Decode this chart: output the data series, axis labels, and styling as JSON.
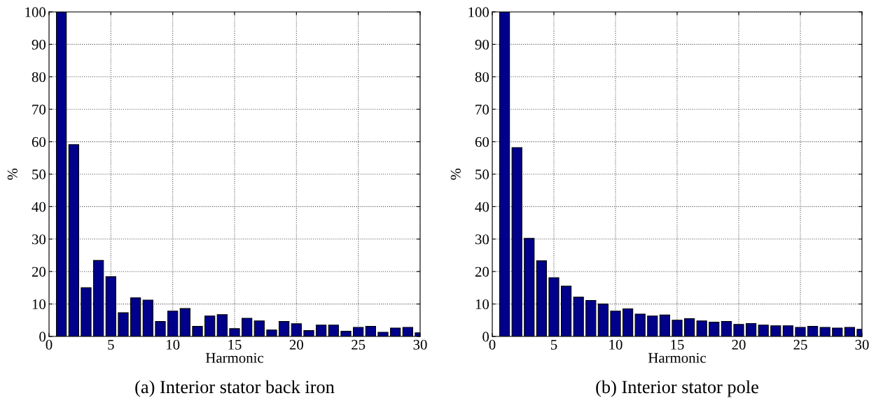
{
  "chart_data": [
    {
      "type": "bar",
      "x": [
        1,
        2,
        3,
        4,
        5,
        6,
        7,
        8,
        9,
        10,
        11,
        12,
        13,
        14,
        15,
        16,
        17,
        18,
        19,
        20,
        21,
        22,
        23,
        24,
        25,
        26,
        27,
        28,
        29,
        30
      ],
      "values": [
        100,
        59.1,
        15.0,
        23.4,
        18.4,
        7.3,
        11.9,
        11.2,
        4.6,
        7.8,
        8.6,
        3.1,
        6.3,
        6.7,
        2.4,
        5.6,
        4.8,
        2.0,
        4.6,
        3.9,
        1.8,
        3.5,
        3.5,
        1.6,
        2.8,
        3.1,
        1.3,
        2.6,
        2.8,
        1.1
      ],
      "color": "#00008b",
      "xlabel": "Harmonic",
      "ylabel": "%",
      "xlim": [
        0,
        30
      ],
      "xticks": [
        0,
        5,
        10,
        15,
        20,
        25,
        30
      ],
      "ylim": [
        0,
        100
      ],
      "yticks": [
        0,
        10,
        20,
        30,
        40,
        50,
        60,
        70,
        80,
        90,
        100
      ],
      "grid": true,
      "annotations": [
        "(a) Interior stator back iron"
      ]
    },
    {
      "type": "bar",
      "x": [
        1,
        2,
        3,
        4,
        5,
        6,
        7,
        8,
        9,
        10,
        11,
        12,
        13,
        14,
        15,
        16,
        17,
        18,
        19,
        20,
        21,
        22,
        23,
        24,
        25,
        26,
        27,
        28,
        29,
        30
      ],
      "values": [
        100,
        58.2,
        30.2,
        23.3,
        18.1,
        15.5,
        12.1,
        11.1,
        10.0,
        7.8,
        8.5,
        6.9,
        6.3,
        6.6,
        5.0,
        5.5,
        4.8,
        4.4,
        4.6,
        3.7,
        4.0,
        3.5,
        3.3,
        3.3,
        2.8,
        3.1,
        2.8,
        2.6,
        2.8,
        2.2
      ],
      "color": "#00008b",
      "xlabel": "Harmonic",
      "ylabel": "%",
      "xlim": [
        0,
        30
      ],
      "xticks": [
        0,
        5,
        10,
        15,
        20,
        25,
        30
      ],
      "ylim": [
        0,
        100
      ],
      "yticks": [
        0,
        10,
        20,
        30,
        40,
        50,
        60,
        70,
        80,
        90,
        100
      ],
      "grid": true,
      "annotations": [
        "(b) Interior stator pole"
      ]
    }
  ]
}
